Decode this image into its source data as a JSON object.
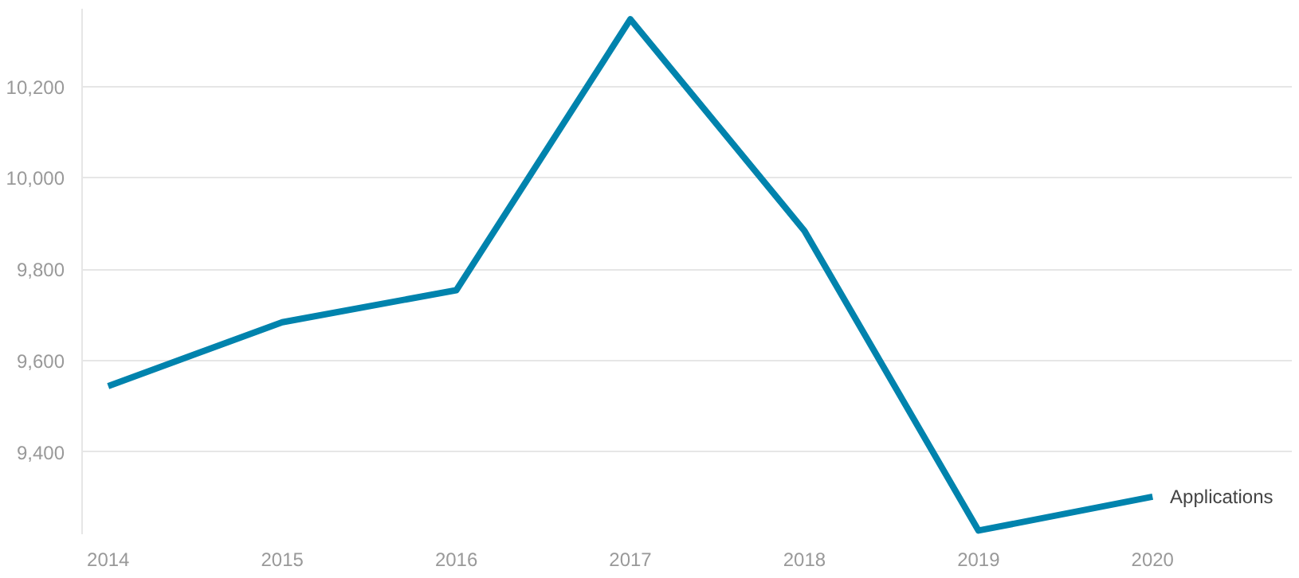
{
  "chart_data": {
    "type": "line",
    "categories": [
      "2014",
      "2015",
      "2016",
      "2017",
      "2018",
      "2019",
      "2020"
    ],
    "series": [
      {
        "name": "Applications",
        "color": "#0083ad",
        "values": [
          9544,
          9684,
          9754,
          10347,
          9884,
          9228,
          9302
        ]
      }
    ],
    "ylim": [
      9220,
      10370
    ],
    "yticks": [
      {
        "value": 9400,
        "label": "9,400"
      },
      {
        "value": 9600,
        "label": "9,600"
      },
      {
        "value": 9800,
        "label": "9,800"
      },
      {
        "value": 10000,
        "label": "10,000"
      },
      {
        "value": 10200,
        "label": "10,200"
      }
    ],
    "grid": "y",
    "marker": "none",
    "line_style": "solid"
  }
}
